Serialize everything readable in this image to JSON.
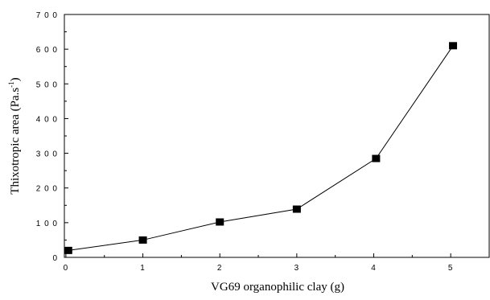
{
  "chart_data": {
    "type": "line",
    "title": "",
    "xlabel": "VG69 organophilic clay (g)",
    "ylabel_main": "Thixotropic area (Pa.s",
    "ylabel_sup": "-1",
    "ylabel_tail": ")",
    "xlim": [
      -0.02,
      5.5
    ],
    "ylim": [
      0,
      700
    ],
    "x_ticks": [
      0,
      1,
      2,
      3,
      4,
      5
    ],
    "y_ticks": [
      0,
      100,
      200,
      300,
      400,
      500,
      600,
      700
    ],
    "x_tick_labels": [
      "0",
      "1",
      "2",
      "3",
      "4",
      "5"
    ],
    "y_tick_labels": [
      "0",
      "1 0 0",
      "2 0 0",
      "3 0 0",
      "4 0 0",
      "5 0 0",
      "6 0 0",
      "7 0 0"
    ],
    "grid": false,
    "series": [
      {
        "x": [
          0.03,
          1,
          2,
          3,
          4.03,
          5.03
        ],
        "y": [
          20,
          50,
          102,
          139,
          285,
          610
        ],
        "marker": "square",
        "color": "#000000"
      }
    ]
  }
}
